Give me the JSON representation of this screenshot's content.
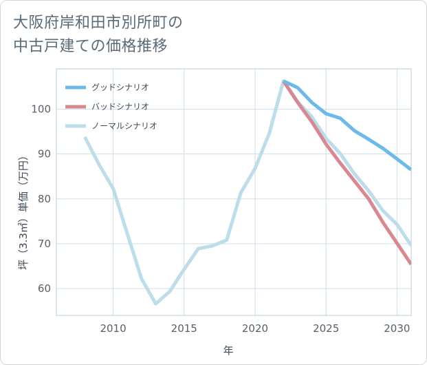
{
  "title": {
    "line1": "大阪府岸和田市別所町の",
    "line2": "中古戸建ての価格推移"
  },
  "chart_data": {
    "type": "line",
    "title": "大阪府岸和田市別所町の中古戸建ての価格推移",
    "xlabel": "年",
    "ylabel": "坪（3.3㎡）単価（万円）",
    "xlim": [
      2006,
      2031
    ],
    "ylim": [
      54,
      109
    ],
    "xticks": [
      2010,
      2015,
      2020,
      2025,
      2030
    ],
    "yticks": [
      60,
      70,
      80,
      90,
      100
    ],
    "grid": true,
    "legend_position": "top-left",
    "series": [
      {
        "name": "グッドシナリオ",
        "color": "#6cb9ea",
        "x": [
          2022,
          2023,
          2024,
          2025,
          2026,
          2027,
          2028,
          2029,
          2030,
          2031
        ],
        "y": [
          106.3,
          104.8,
          101.5,
          99.0,
          98.0,
          95.2,
          93.3,
          91.3,
          88.9,
          86.5
        ]
      },
      {
        "name": "バッドシナリオ",
        "color": "#d98892",
        "x": [
          2022,
          2023,
          2024,
          2025,
          2026,
          2027,
          2028,
          2029,
          2030,
          2031
        ],
        "y": [
          106.3,
          101.5,
          97.2,
          92.2,
          88.0,
          84.0,
          80.0,
          74.8,
          70.1,
          65.4
        ]
      },
      {
        "name": "ノーマルシナリオ",
        "color": "#bcdde9",
        "x": [
          2008,
          2009,
          2010,
          2011,
          2012,
          2013,
          2014,
          2015,
          2016,
          2017,
          2018,
          2019,
          2020,
          2021,
          2022,
          2023,
          2024,
          2025,
          2026,
          2027,
          2028,
          2029,
          2030,
          2031
        ],
        "y": [
          93.8,
          87.7,
          82.3,
          72.2,
          62.2,
          56.6,
          59.4,
          64.3,
          68.9,
          69.5,
          70.8,
          81.4,
          86.8,
          94.6,
          106.3,
          101.7,
          98.3,
          93.5,
          90.1,
          85.6,
          81.8,
          77.4,
          74.3,
          69.6
        ]
      }
    ]
  }
}
